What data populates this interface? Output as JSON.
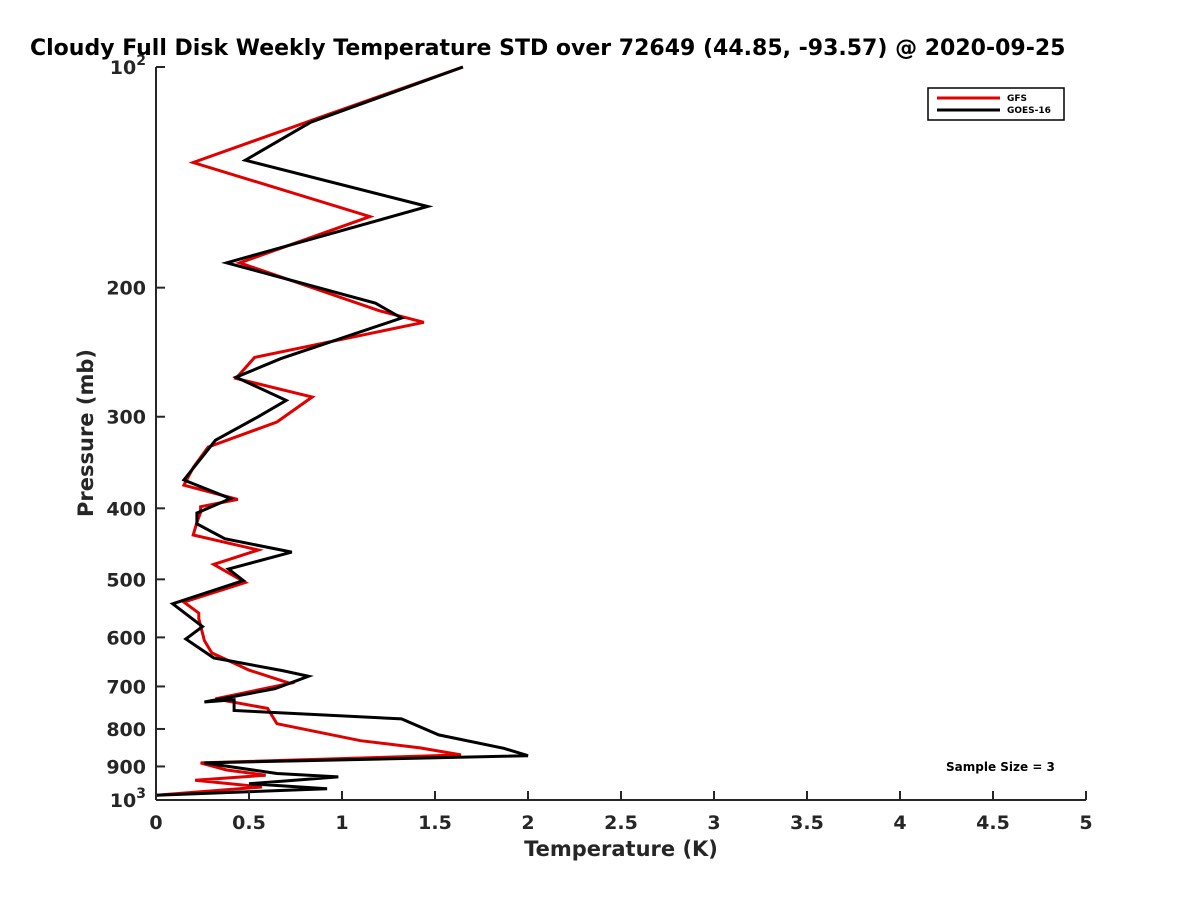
{
  "chart_data": {
    "type": "line",
    "title": "Cloudy Full Disk Weekly Temperature STD over 72649 (44.85, -93.57) @ 2020-09-25",
    "xlabel": "Temperature (K)",
    "ylabel": "Pressure (mb)",
    "xlim": [
      0,
      5
    ],
    "ylim": [
      100,
      1000
    ],
    "y_scale": "log",
    "y_reversed": true,
    "grid": false,
    "legend_position": "top-right",
    "x_ticks": [
      0,
      0.5,
      1,
      1.5,
      2,
      2.5,
      3,
      3.5,
      4,
      4.5,
      5
    ],
    "x_tick_labels": [
      "0",
      "0.5",
      "1",
      "1.5",
      "2",
      "2.5",
      "3",
      "3.5",
      "4",
      "4.5",
      "5"
    ],
    "y_ticks": [
      100,
      200,
      300,
      400,
      500,
      600,
      700,
      800,
      900,
      1000
    ],
    "y_tick_labels": [
      {
        "base": "10",
        "exp": "2"
      },
      {
        "base": "200",
        "exp": ""
      },
      {
        "base": "300",
        "exp": ""
      },
      {
        "base": "400",
        "exp": ""
      },
      {
        "base": "500",
        "exp": ""
      },
      {
        "base": "600",
        "exp": ""
      },
      {
        "base": "700",
        "exp": ""
      },
      {
        "base": "800",
        "exp": ""
      },
      {
        "base": "900",
        "exp": ""
      },
      {
        "base": "10",
        "exp": "3"
      }
    ],
    "annotation": "Sample Size = 3",
    "series": [
      {
        "name": "GFS",
        "color": "#e00000",
        "points": [
          [
            1.65,
            100
          ],
          [
            0.93,
            116
          ],
          [
            0.2,
            135
          ],
          [
            1.15,
            160
          ],
          [
            0.45,
            185
          ],
          [
            1.2,
            215
          ],
          [
            1.44,
            223
          ],
          [
            0.53,
            249
          ],
          [
            0.43,
            266
          ],
          [
            0.84,
            282
          ],
          [
            0.65,
            305
          ],
          [
            0.28,
            330
          ],
          [
            0.2,
            352
          ],
          [
            0.15,
            372
          ],
          [
            0.44,
            389
          ],
          [
            0.24,
            398
          ],
          [
            0.24,
            405
          ],
          [
            0.22,
            418
          ],
          [
            0.2,
            435
          ],
          [
            0.55,
            456
          ],
          [
            0.31,
            477
          ],
          [
            0.48,
            505
          ],
          [
            0.15,
            537
          ],
          [
            0.23,
            556
          ],
          [
            0.23,
            566
          ],
          [
            0.26,
            606
          ],
          [
            0.3,
            630
          ],
          [
            0.5,
            665
          ],
          [
            0.72,
            693
          ],
          [
            0.32,
            728
          ],
          [
            0.6,
            750
          ],
          [
            0.65,
            787
          ],
          [
            1.1,
            830
          ],
          [
            1.42,
            849
          ],
          [
            1.64,
            868
          ],
          [
            0.24,
            890
          ],
          [
            0.38,
            910
          ],
          [
            0.59,
            925
          ],
          [
            0.21,
            940
          ],
          [
            0.57,
            960
          ],
          [
            0.0,
            985
          ]
        ]
      },
      {
        "name": "GOES-16",
        "color": "#000000",
        "points": [
          [
            1.65,
            100
          ],
          [
            0.83,
            119
          ],
          [
            0.48,
            134
          ],
          [
            1.46,
            155
          ],
          [
            0.38,
            185
          ],
          [
            1.18,
            210
          ],
          [
            1.32,
            220
          ],
          [
            0.67,
            250
          ],
          [
            0.43,
            265
          ],
          [
            0.7,
            285
          ],
          [
            0.55,
            300
          ],
          [
            0.32,
            323
          ],
          [
            0.15,
            366
          ],
          [
            0.4,
            388
          ],
          [
            0.22,
            406
          ],
          [
            0.22,
            420
          ],
          [
            0.37,
            440
          ],
          [
            0.73,
            459
          ],
          [
            0.39,
            484
          ],
          [
            0.47,
            502
          ],
          [
            0.09,
            540
          ],
          [
            0.25,
            580
          ],
          [
            0.16,
            603
          ],
          [
            0.31,
            640
          ],
          [
            0.68,
            666
          ],
          [
            0.82,
            678
          ],
          [
            0.64,
            705
          ],
          [
            0.26,
            735
          ],
          [
            0.42,
            730
          ],
          [
            0.42,
            755
          ],
          [
            1.32,
            775
          ],
          [
            1.52,
            815
          ],
          [
            1.87,
            850
          ],
          [
            2.0,
            870
          ],
          [
            0.26,
            890
          ],
          [
            0.65,
            920
          ],
          [
            0.98,
            930
          ],
          [
            0.5,
            950
          ],
          [
            0.92,
            965
          ],
          [
            0.0,
            985
          ]
        ]
      }
    ]
  }
}
